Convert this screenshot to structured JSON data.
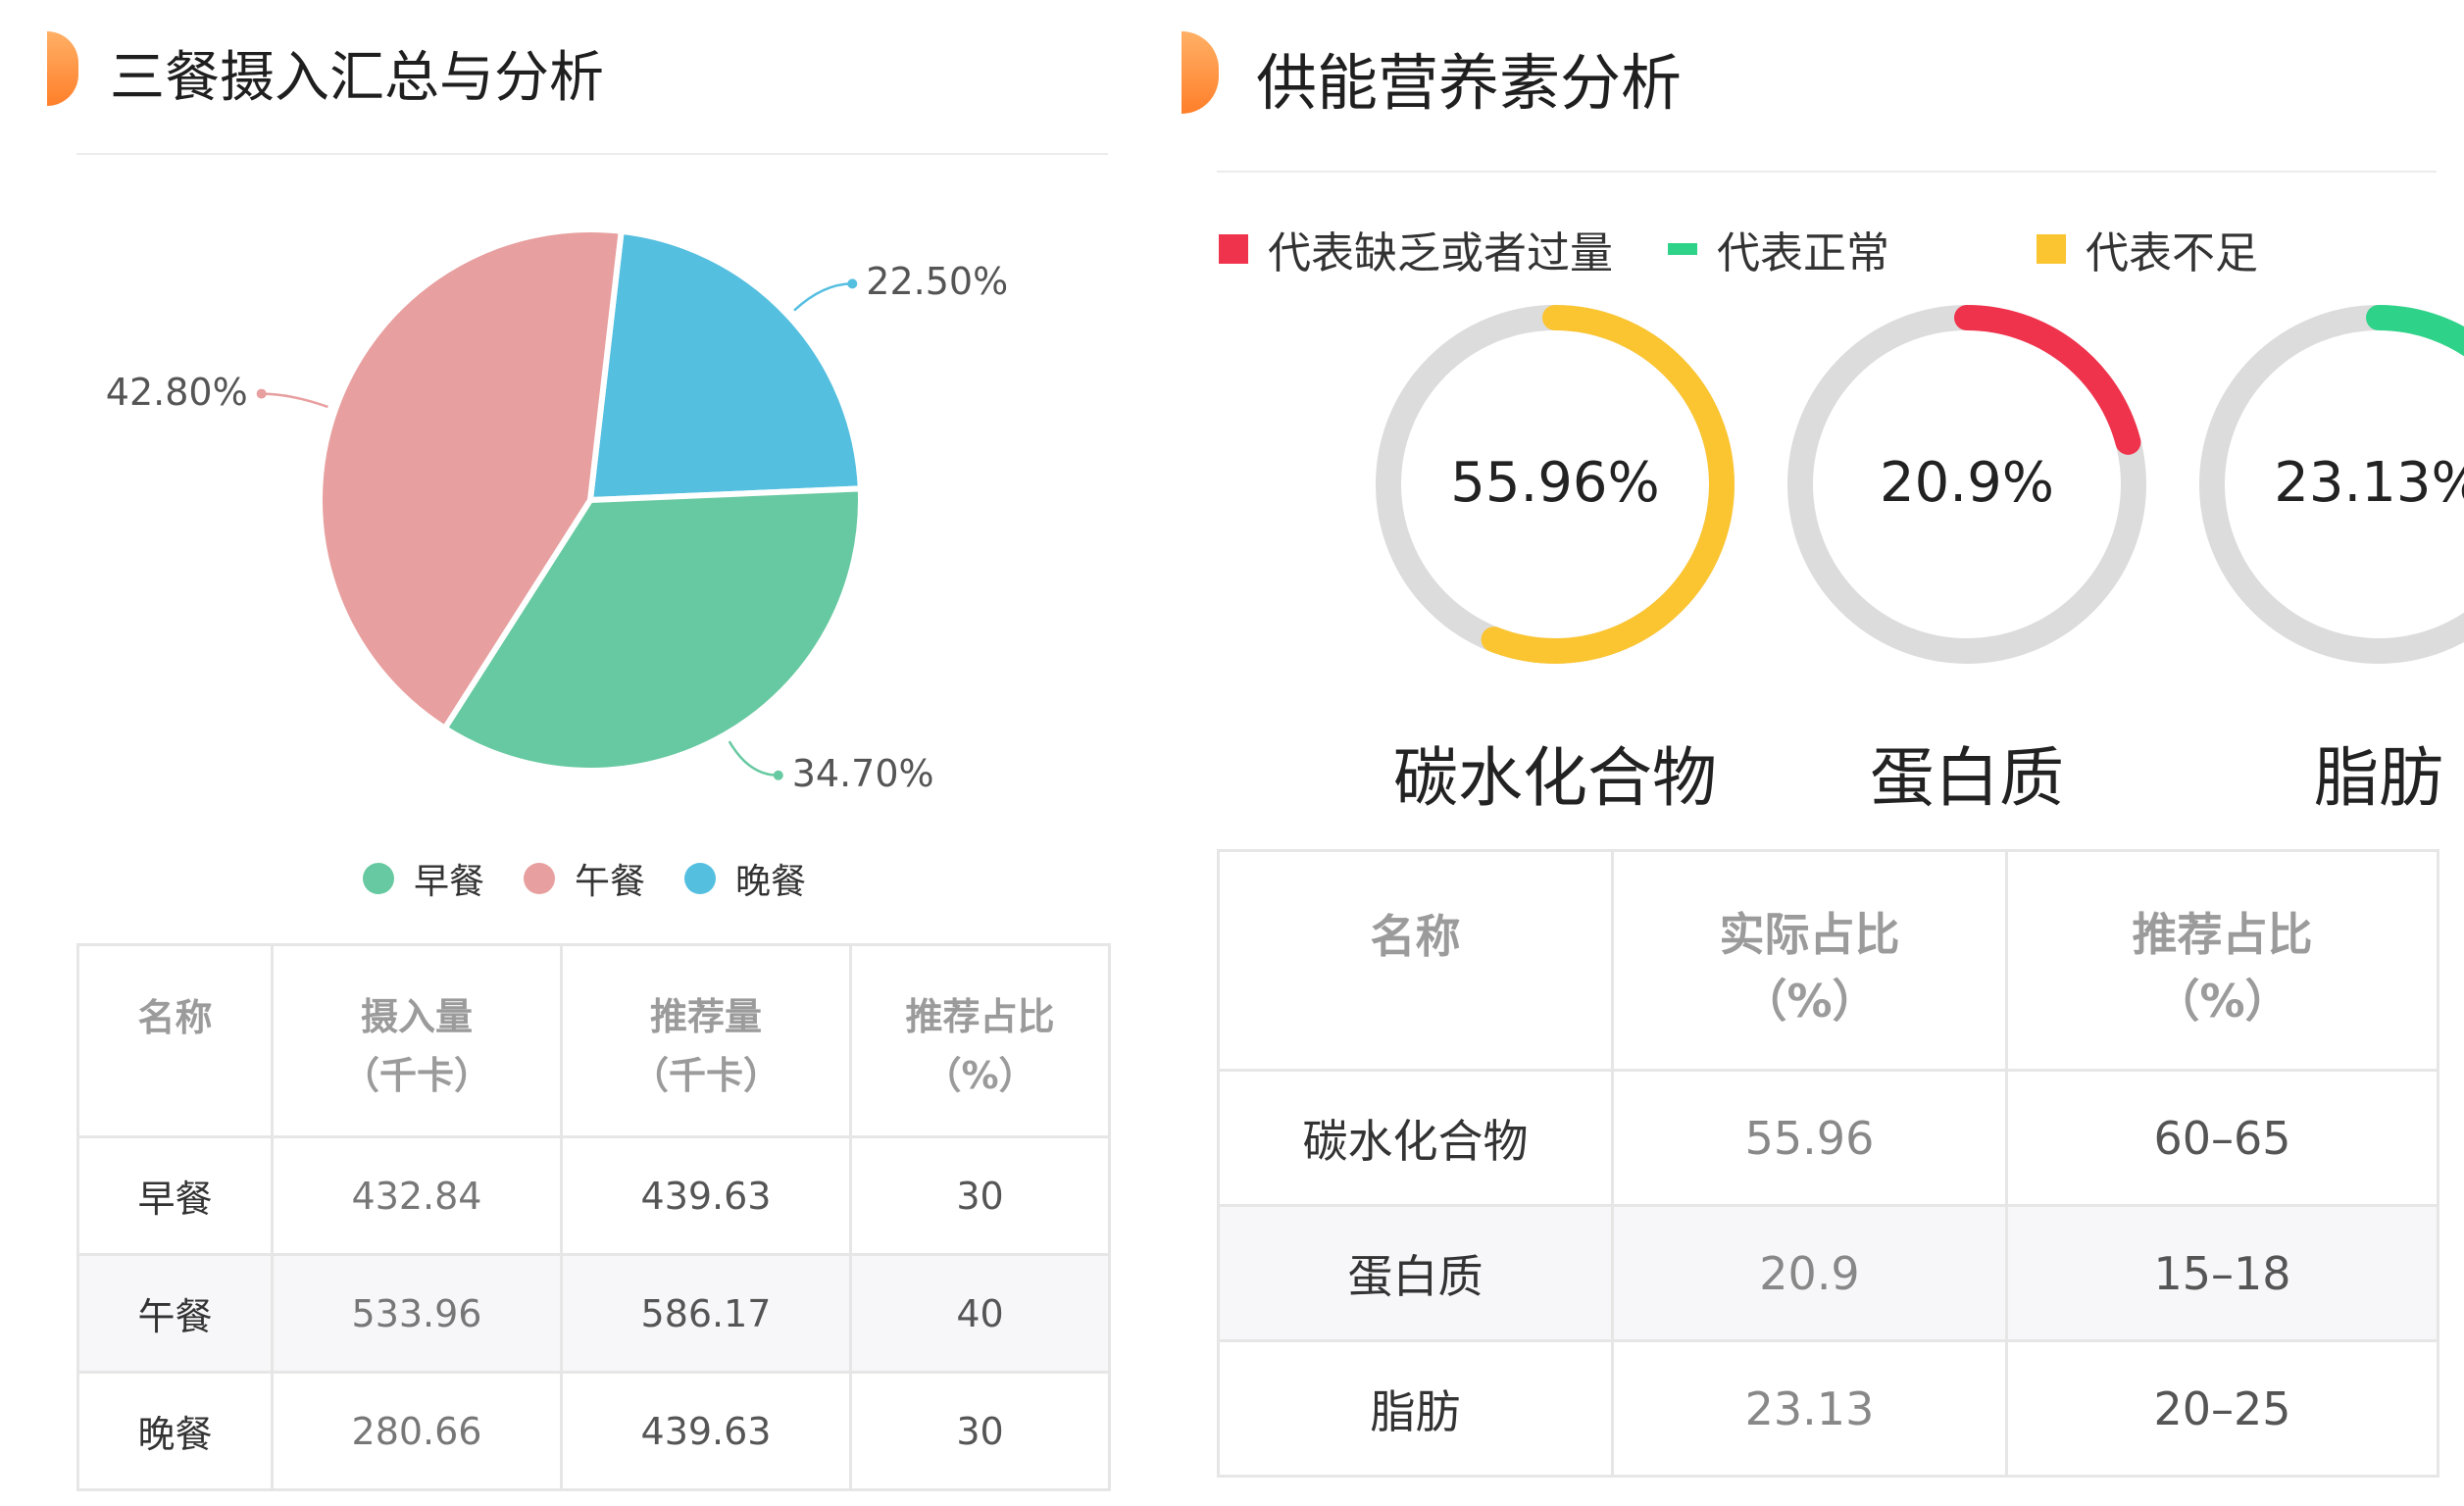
{
  "meal_section": {
    "title": "三餐摄入汇总与分析",
    "pie": {
      "slices": [
        {
          "name": "晚餐",
          "value": 22.5,
          "label": "22.50%",
          "color": "#55bfe0"
        },
        {
          "name": "早餐",
          "value": 34.7,
          "label": "34.70%",
          "color": "#67c9a1"
        },
        {
          "name": "午餐",
          "value": 42.8,
          "label": "42.80%",
          "color": "#e89f9f"
        }
      ]
    },
    "legend": [
      {
        "name": "早餐",
        "color": "#67c9a1"
      },
      {
        "name": "午餐",
        "color": "#e89f9f"
      },
      {
        "name": "晚餐",
        "color": "#55bfe0"
      }
    ],
    "table": {
      "headers": [
        {
          "line1": "名称",
          "line2": ""
        },
        {
          "line1": "摄入量",
          "line2": "（千卡）"
        },
        {
          "line1": "推荐量",
          "line2": "（千卡）"
        },
        {
          "line1": "推荐占比",
          "line2": "（%）"
        }
      ],
      "rows": [
        [
          "早餐",
          "432.84",
          "439.63",
          "30"
        ],
        [
          "午餐",
          "533.96",
          "586.17",
          "40"
        ],
        [
          "晚餐",
          "280.66",
          "439.63",
          "30"
        ]
      ]
    }
  },
  "nutrient_section": {
    "title": "供能营养素分析",
    "legend": [
      {
        "text": "代表缺乏或者过量",
        "color": "#f0334c",
        "shape": "square"
      },
      {
        "text": "代表正常",
        "color": "#2ed389",
        "shape": "bar"
      },
      {
        "text": "代表不足",
        "color": "#fbc531",
        "shape": "square"
      }
    ],
    "rings": [
      {
        "name": "碳水化合物",
        "value": 55.96,
        "label": "55.96%",
        "color": "#fbc531"
      },
      {
        "name": "蛋白质",
        "value": 20.9,
        "label": "20.9%",
        "color": "#f0334c"
      },
      {
        "name": "脂肪",
        "value": 23.13,
        "label": "23.13%",
        "color": "#2ed389"
      }
    ],
    "table": {
      "headers": [
        {
          "line1": "名称",
          "line2": ""
        },
        {
          "line1": "实际占比",
          "line2": "（%）"
        },
        {
          "line1": "推荐占比",
          "line2": "（%）"
        }
      ],
      "rows": [
        [
          "碳水化合物",
          "55.96",
          "60–65"
        ],
        [
          "蛋白质",
          "20.9",
          "15–18"
        ],
        [
          "脂肪",
          "23.13",
          "20–25"
        ]
      ]
    }
  }
}
